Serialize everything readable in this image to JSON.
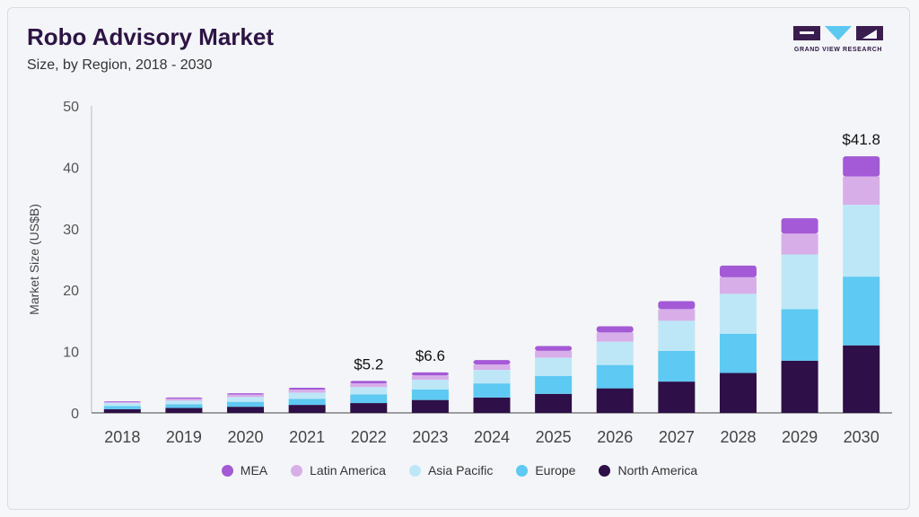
{
  "header": {
    "title": "Robo Advisory Market",
    "subtitle": "Size, by Region, 2018 - 2030"
  },
  "logo": {
    "text": "GRAND VIEW RESEARCH",
    "icon": "grand-view-research-logo-icon",
    "colors": {
      "dark": "#3a1d4f",
      "accent": "#5cc8f2"
    }
  },
  "chart_data": {
    "type": "bar",
    "stacked": true,
    "title": "Robo Advisory Market",
    "subtitle": "Size, by Region, 2018 - 2030",
    "xlabel": "",
    "ylabel": "Market Size (US$B)",
    "ylim": [
      0,
      50
    ],
    "yticks": [
      0,
      10,
      20,
      30,
      40,
      50
    ],
    "grid": false,
    "legend_position": "bottom",
    "categories": [
      "2018",
      "2019",
      "2020",
      "2021",
      "2022",
      "2023",
      "2024",
      "2025",
      "2026",
      "2027",
      "2028",
      "2029",
      "2030"
    ],
    "series": [
      {
        "name": "North America",
        "color": "#2e0f47",
        "values": [
          0.6,
          0.8,
          1.0,
          1.3,
          1.6,
          2.1,
          2.5,
          3.1,
          4.0,
          5.1,
          6.5,
          8.5,
          11.0
        ]
      },
      {
        "name": "Europe",
        "color": "#5ec9f2",
        "values": [
          0.5,
          0.6,
          0.8,
          1.0,
          1.4,
          1.7,
          2.3,
          2.9,
          3.8,
          5.0,
          6.4,
          8.4,
          11.2
        ]
      },
      {
        "name": "Asia Pacific",
        "color": "#bde7f7",
        "values": [
          0.5,
          0.6,
          0.8,
          1.0,
          1.2,
          1.6,
          2.2,
          3.0,
          3.8,
          4.9,
          6.5,
          8.9,
          11.7
        ]
      },
      {
        "name": "Latin America",
        "color": "#d8aee9",
        "values": [
          0.2,
          0.3,
          0.4,
          0.5,
          0.6,
          0.7,
          0.9,
          1.1,
          1.5,
          1.9,
          2.7,
          3.4,
          4.6
        ]
      },
      {
        "name": "MEA",
        "color": "#a45ad6",
        "values": [
          0.1,
          0.2,
          0.2,
          0.3,
          0.4,
          0.5,
          0.7,
          0.8,
          1.0,
          1.3,
          1.9,
          2.5,
          3.3
        ]
      }
    ],
    "annotations": [
      {
        "category": "2022",
        "label": "$5.2"
      },
      {
        "category": "2023",
        "label": "$6.6"
      },
      {
        "category": "2030",
        "label": "$41.8"
      }
    ]
  }
}
